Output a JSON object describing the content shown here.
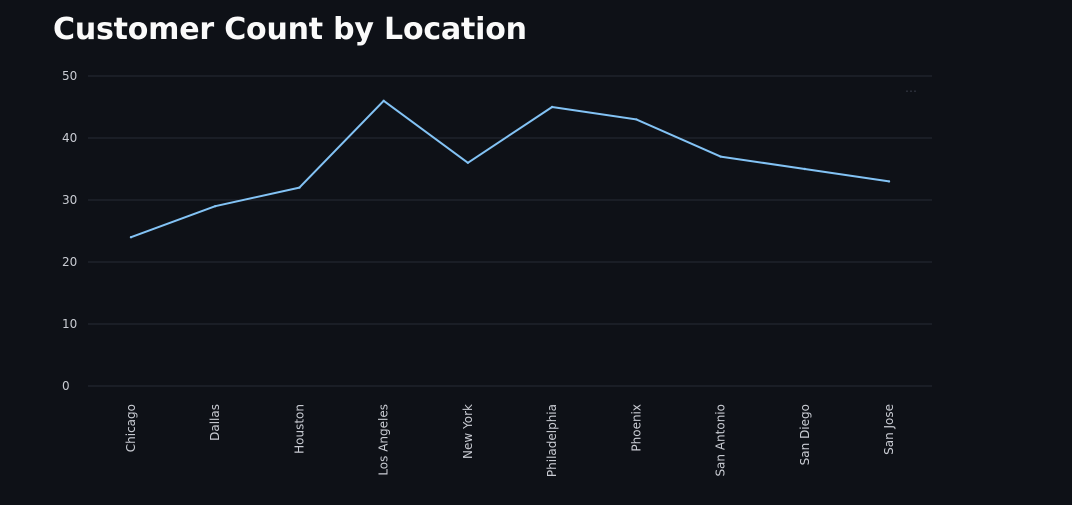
{
  "page": {
    "title": "Customer Count by Location",
    "menu_icon": "more-horizontal-icon"
  },
  "colors": {
    "background": "#0e1117",
    "gridline": "#262b35",
    "line": "#83c3f5",
    "text": "#fafafa",
    "tick_text": "#c9ccd3"
  },
  "chart_data": {
    "type": "line",
    "categories": [
      "Chicago",
      "Dallas",
      "Houston",
      "Los Angeles",
      "New York",
      "Philadelphia",
      "Phoenix",
      "San Antonio",
      "San Diego",
      "San Jose"
    ],
    "series": [
      {
        "values": [
          24,
          29,
          32,
          46,
          36,
          45,
          43,
          37,
          35,
          33
        ]
      }
    ],
    "title": "",
    "xlabel": "",
    "ylabel": "",
    "ylim": [
      0,
      50
    ],
    "yticks": [
      0,
      10,
      20,
      30,
      40,
      50
    ],
    "grid": true,
    "legend": "none"
  }
}
